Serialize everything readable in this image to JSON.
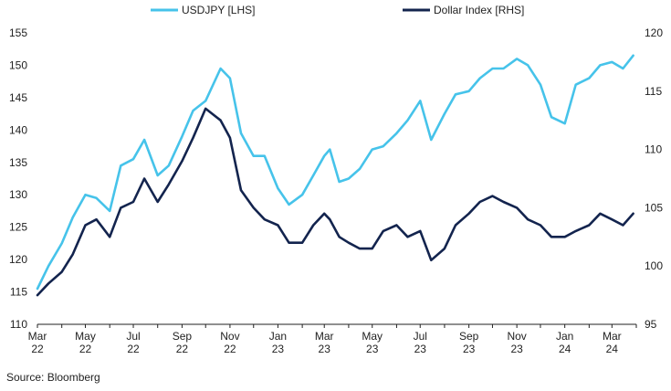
{
  "chart_data": {
    "type": "line",
    "source": "Source: Bloomberg",
    "x_tick_labels": [
      [
        "Mar",
        "22"
      ],
      [
        "May",
        "22"
      ],
      [
        "Jul",
        "22"
      ],
      [
        "Sep",
        "22"
      ],
      [
        "Nov",
        "22"
      ],
      [
        "Jan",
        "23"
      ],
      [
        "Mar",
        "23"
      ],
      [
        "May",
        "23"
      ],
      [
        "Jul",
        "23"
      ],
      [
        "Sep",
        "23"
      ],
      [
        "Nov",
        "23"
      ],
      [
        "Jan",
        "24"
      ],
      [
        "Mar",
        "24"
      ]
    ],
    "y_left": {
      "min": 110,
      "max": 155,
      "ticks": [
        110,
        115,
        120,
        125,
        130,
        135,
        140,
        145,
        150,
        155
      ]
    },
    "y_right": {
      "min": 95,
      "max": 120,
      "ticks": [
        95,
        100,
        105,
        110,
        115,
        120
      ]
    },
    "grid": false,
    "legend_position": "top",
    "series": [
      {
        "name": "USDJPY [LHS]",
        "axis": "left",
        "color": "#46c3ea",
        "x": [
          "2022-03-01",
          "2022-03-15",
          "2022-04-01",
          "2022-04-15",
          "2022-05-01",
          "2022-05-15",
          "2022-06-01",
          "2022-06-15",
          "2022-07-01",
          "2022-07-15",
          "2022-08-01",
          "2022-08-15",
          "2022-09-01",
          "2022-09-15",
          "2022-10-01",
          "2022-10-20",
          "2022-11-01",
          "2022-11-15",
          "2022-12-01",
          "2022-12-15",
          "2023-01-01",
          "2023-01-15",
          "2023-02-01",
          "2023-02-15",
          "2023-03-01",
          "2023-03-08",
          "2023-03-20",
          "2023-04-01",
          "2023-04-15",
          "2023-05-01",
          "2023-05-15",
          "2023-06-01",
          "2023-06-15",
          "2023-07-01",
          "2023-07-15",
          "2023-08-01",
          "2023-08-15",
          "2023-09-01",
          "2023-09-15",
          "2023-10-01",
          "2023-10-15",
          "2023-11-01",
          "2023-11-15",
          "2023-12-01",
          "2023-12-15",
          "2024-01-01",
          "2024-01-15",
          "2024-02-01",
          "2024-02-15",
          "2024-03-01",
          "2024-03-15",
          "2024-03-28"
        ],
        "values": [
          115.5,
          119,
          122.5,
          126.5,
          130,
          129.5,
          127.5,
          134.5,
          135.5,
          138.5,
          133,
          134.5,
          139,
          143,
          144.5,
          149.5,
          148,
          139.5,
          136,
          136,
          131,
          128.5,
          130,
          133,
          136,
          137,
          132,
          132.5,
          134,
          137,
          137.5,
          139.5,
          141.5,
          144.5,
          138.5,
          142.5,
          145.5,
          146,
          148,
          149.5,
          149.5,
          151,
          150,
          147,
          142,
          141,
          147,
          148,
          150,
          150.5,
          149.5,
          151.5
        ]
      },
      {
        "name": "Dollar Index [RHS]",
        "axis": "right",
        "color": "#13244e",
        "x": [
          "2022-03-01",
          "2022-03-15",
          "2022-04-01",
          "2022-04-15",
          "2022-05-01",
          "2022-05-15",
          "2022-06-01",
          "2022-06-15",
          "2022-07-01",
          "2022-07-15",
          "2022-08-01",
          "2022-08-15",
          "2022-09-01",
          "2022-09-15",
          "2022-10-01",
          "2022-10-20",
          "2022-11-01",
          "2022-11-15",
          "2022-12-01",
          "2022-12-15",
          "2023-01-01",
          "2023-01-15",
          "2023-02-01",
          "2023-02-15",
          "2023-03-01",
          "2023-03-08",
          "2023-03-20",
          "2023-04-01",
          "2023-04-15",
          "2023-05-01",
          "2023-05-15",
          "2023-06-01",
          "2023-06-15",
          "2023-07-01",
          "2023-07-15",
          "2023-08-01",
          "2023-08-15",
          "2023-09-01",
          "2023-09-15",
          "2023-10-01",
          "2023-10-15",
          "2023-11-01",
          "2023-11-15",
          "2023-12-01",
          "2023-12-15",
          "2024-01-01",
          "2024-01-15",
          "2024-02-01",
          "2024-02-15",
          "2024-03-01",
          "2024-03-15",
          "2024-03-28"
        ],
        "values": [
          97.5,
          98.5,
          99.5,
          101,
          103.5,
          104,
          102.5,
          105,
          105.5,
          107.5,
          105.5,
          107,
          109,
          111,
          113.5,
          112.5,
          111,
          106.5,
          105,
          104,
          103.5,
          102,
          102,
          103.5,
          104.5,
          104,
          102.5,
          102,
          101.5,
          101.5,
          103,
          103.5,
          102.5,
          103,
          100.5,
          101.5,
          103.5,
          104.5,
          105.5,
          106,
          105.5,
          105,
          104,
          103.5,
          102.5,
          102.5,
          103,
          103.5,
          104.5,
          104,
          103.5,
          104.5
        ]
      }
    ]
  }
}
